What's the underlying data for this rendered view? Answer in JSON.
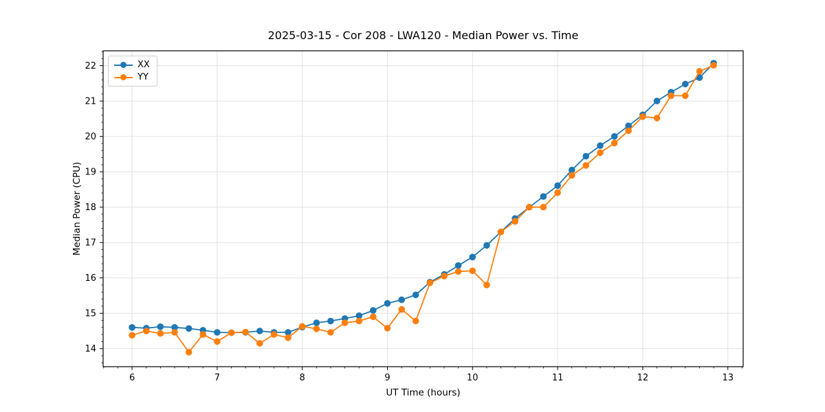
{
  "chart_data": {
    "type": "line",
    "title": "2025-03-15 - Cor 208 - LWA120 - Median Power vs. Time",
    "xlabel": "UT Time (hours)",
    "ylabel": "Median Power (CPU)",
    "xlim": [
      5.66,
      13.18
    ],
    "ylim": [
      13.49,
      22.42
    ],
    "x_ticks": [
      6,
      7,
      8,
      9,
      10,
      11,
      12,
      13
    ],
    "y_ticks": [
      14,
      15,
      16,
      17,
      18,
      19,
      20,
      21,
      22
    ],
    "x_minor_step": 0.16667,
    "y_minor_step": 0.2,
    "grid": true,
    "legend_position": "upper left",
    "x": [
      6.0,
      6.167,
      6.333,
      6.5,
      6.667,
      6.833,
      7.0,
      7.167,
      7.333,
      7.5,
      7.667,
      7.833,
      8.0,
      8.167,
      8.333,
      8.5,
      8.667,
      8.833,
      9.0,
      9.167,
      9.333,
      9.5,
      9.667,
      9.833,
      10.0,
      10.167,
      10.333,
      10.5,
      10.667,
      10.833,
      11.0,
      11.167,
      11.333,
      11.5,
      11.667,
      11.833,
      12.0,
      12.167,
      12.333,
      12.5,
      12.667,
      12.833
    ],
    "series": [
      {
        "name": "XX",
        "color": "#1f77b4",
        "values": [
          14.6,
          14.58,
          14.62,
          14.6,
          14.57,
          14.52,
          14.46,
          14.45,
          14.46,
          14.5,
          14.46,
          14.46,
          14.61,
          14.73,
          14.78,
          14.85,
          14.93,
          15.08,
          15.28,
          15.38,
          15.52,
          15.88,
          16.1,
          16.35,
          16.59,
          16.92,
          17.3,
          17.68,
          18.0,
          18.3,
          18.61,
          19.05,
          19.44,
          19.74,
          20.0,
          20.3,
          20.61,
          21.0,
          21.25,
          21.48,
          21.66,
          22.07
        ]
      },
      {
        "name": "YY",
        "color": "#ff7f0e",
        "values": [
          14.38,
          14.5,
          14.43,
          14.46,
          13.9,
          14.4,
          14.2,
          14.45,
          14.47,
          14.15,
          14.4,
          14.31,
          14.63,
          14.56,
          14.46,
          14.73,
          14.78,
          14.9,
          14.58,
          15.11,
          14.78,
          15.86,
          16.05,
          16.18,
          16.2,
          15.8,
          17.3,
          17.6,
          18.0,
          18.0,
          18.41,
          18.9,
          19.18,
          19.54,
          19.81,
          20.16,
          20.56,
          20.52,
          21.15,
          21.15,
          21.84,
          22.01
        ]
      }
    ]
  }
}
